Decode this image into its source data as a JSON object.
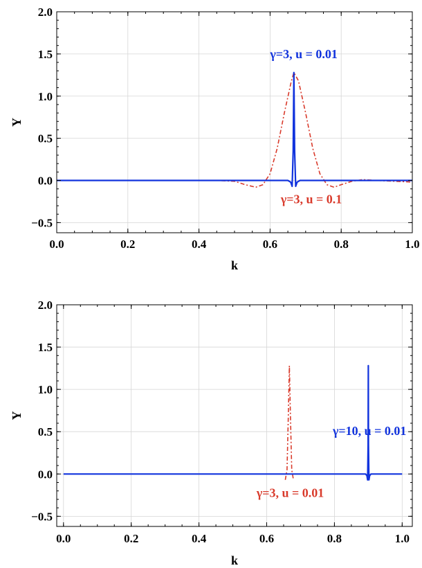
{
  "chart_data": [
    {
      "type": "line",
      "xlabel": "k",
      "ylabel": "Υ",
      "xlim": [
        0,
        1
      ],
      "ylim": [
        -0.62,
        2.0
      ],
      "xticks": [
        "0.0",
        "0.2",
        "0.4",
        "0.6",
        "0.8",
        "1.0"
      ],
      "yticks": [
        "−0.5",
        "0.0",
        "0.5",
        "1.0",
        "1.5",
        "2.0"
      ],
      "grid": true,
      "series": [
        {
          "name": "γ=3, u = 0.1",
          "color": "#d93a2b",
          "style": "dash-dot",
          "x": [
            0.0,
            0.45,
            0.5,
            0.53,
            0.56,
            0.58,
            0.6,
            0.62,
            0.64,
            0.66,
            0.667,
            0.68,
            0.7,
            0.72,
            0.74,
            0.76,
            0.78,
            0.8,
            0.83,
            0.86,
            0.9,
            0.95,
            1.0
          ],
          "values": [
            0.0,
            0.0,
            -0.01,
            -0.05,
            -0.08,
            -0.05,
            0.08,
            0.38,
            0.8,
            1.18,
            1.28,
            1.18,
            0.8,
            0.38,
            0.08,
            -0.05,
            -0.08,
            -0.05,
            -0.01,
            0.01,
            0.0,
            -0.01,
            -0.02
          ]
        },
        {
          "name": "γ=3, u = 0.01",
          "color": "#1133dd",
          "style": "solid",
          "x": [
            0.0,
            0.65,
            0.658,
            0.662,
            0.665,
            0.667,
            0.669,
            0.672,
            0.676,
            0.684,
            1.0
          ],
          "values": [
            0.0,
            0.0,
            -0.02,
            -0.07,
            0.35,
            1.28,
            0.35,
            -0.07,
            -0.02,
            0.0,
            0.0
          ]
        }
      ],
      "annotations": [
        {
          "text": "γ=3, u = 0.01",
          "color": "#1133dd",
          "x": 0.6,
          "y": 1.45
        },
        {
          "text": "γ=3, u = 0.1",
          "color": "#d93a2b",
          "x": 0.63,
          "y": -0.27
        }
      ]
    },
    {
      "type": "line",
      "xlabel": "k",
      "ylabel": "Υ",
      "xlim": [
        -0.02,
        1.03
      ],
      "ylim": [
        -0.62,
        2.0
      ],
      "xticks": [
        "0.0",
        "0.2",
        "0.4",
        "0.6",
        "0.8",
        "1.0"
      ],
      "yticks": [
        "−0.5",
        "0.0",
        "0.5",
        "1.0",
        "1.5",
        "2.0"
      ],
      "grid": true,
      "series": [
        {
          "name": "γ=3, u = 0.01",
          "color": "#d93a2b",
          "style": "dash-dot",
          "x": [
            0.655,
            0.66,
            0.664,
            0.667,
            0.67,
            0.674,
            0.679
          ],
          "values": [
            -0.07,
            0.05,
            0.7,
            1.28,
            0.7,
            0.05,
            -0.07
          ]
        },
        {
          "name": "γ=10, u = 0.01",
          "color": "#1133dd",
          "style": "solid",
          "x": [
            0.0,
            0.892,
            0.896,
            0.898,
            0.8995,
            0.9,
            0.9005,
            0.902,
            0.904,
            0.908,
            1.0
          ],
          "values": [
            0.0,
            0.0,
            -0.02,
            -0.07,
            0.35,
            1.28,
            0.35,
            -0.07,
            -0.02,
            0.0,
            0.0
          ]
        }
      ],
      "annotations": [
        {
          "text": "γ=3, u = 0.01",
          "color": "#d93a2b",
          "x": 0.57,
          "y": -0.27
        },
        {
          "text": "γ=10, u = 0.01",
          "color": "#1133dd",
          "x": 0.795,
          "y": 0.46
        }
      ]
    }
  ]
}
